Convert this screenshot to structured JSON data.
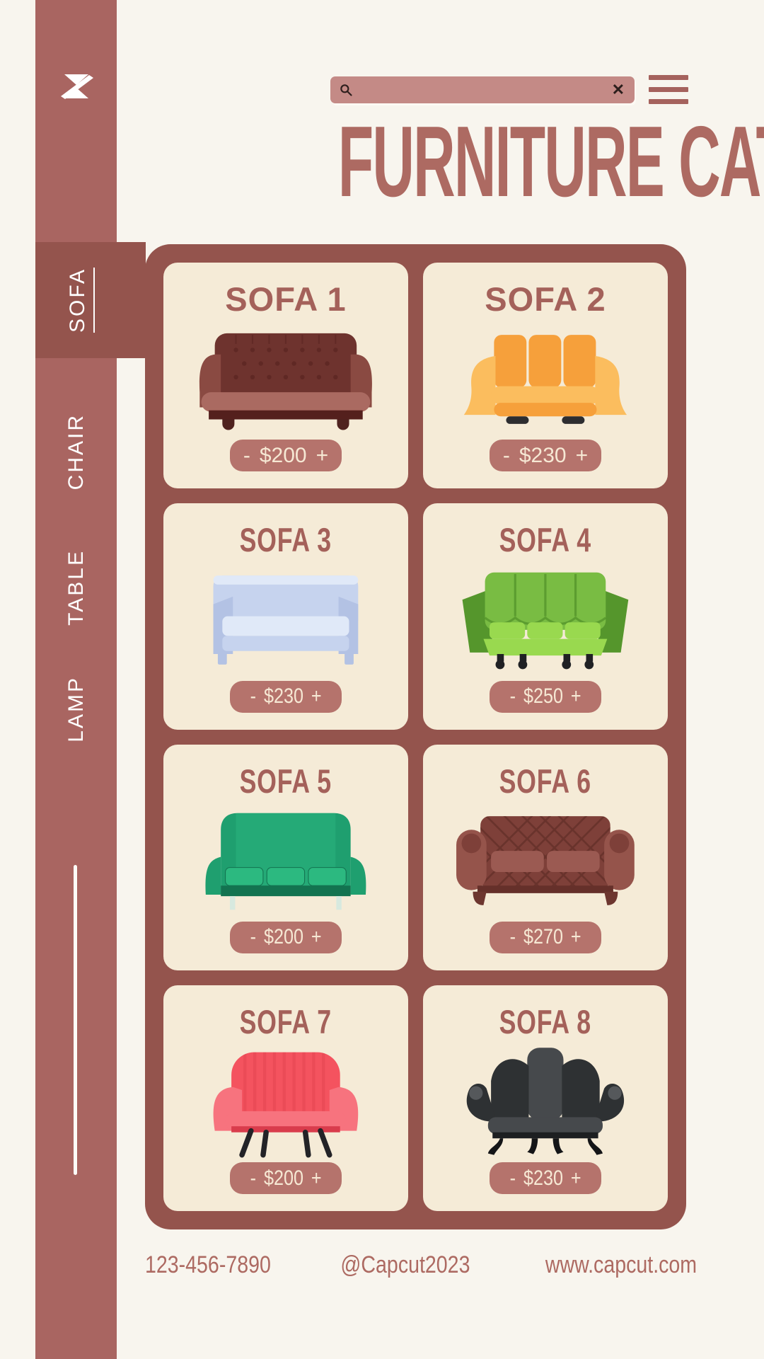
{
  "title": "FURNITURE CATALOG",
  "topbar": {
    "search_placeholder": "",
    "search_value": "",
    "clear_label": "✕"
  },
  "sidebar": {
    "items": [
      {
        "label": "SOFA",
        "active": true
      },
      {
        "label": "CHAIR",
        "active": false
      },
      {
        "label": "TABLE",
        "active": false
      },
      {
        "label": "LAMP",
        "active": false
      }
    ]
  },
  "cards": [
    {
      "title": "SOFA 1",
      "minus": "-",
      "price": "$200",
      "plus": "+",
      "art": "tufted",
      "colors": {
        "main": "#6e332e",
        "light": "#8a4a42",
        "mid": "#aa6a61",
        "dark": "#54201d",
        "feet": "#4f221f"
      }
    },
    {
      "title": "SOFA 2",
      "minus": "-",
      "price": "$230",
      "plus": "+",
      "art": "modern",
      "colors": {
        "main": "#f6a03b",
        "light": "#fbbd5e",
        "mid": "#f9ce7c",
        "dark": "#ee8c26",
        "feet": "#2d2d30"
      }
    },
    {
      "title": "SOFA 3",
      "minus": "-",
      "price": "$230",
      "plus": "+",
      "art": "boxy",
      "colors": {
        "main": "#c6d3ee",
        "light": "#e0e9f8",
        "mid": "#b3c2e4",
        "dark": "#9fb0d8",
        "feet": "#cdd8f1"
      }
    },
    {
      "title": "SOFA 4",
      "minus": "-",
      "price": "$250",
      "plus": "+",
      "art": "lowback",
      "colors": {
        "main": "#79bc43",
        "light": "#99d94f",
        "mid": "#8bcf49",
        "dark": "#55962c",
        "feet": "#202124"
      }
    },
    {
      "title": "SOFA 5",
      "minus": "-",
      "price": "$200",
      "plus": "+",
      "art": "highback",
      "colors": {
        "main": "#1f9f6f",
        "light": "#2cb980",
        "mid": "#36c189",
        "dark": "#137350",
        "feet": "#d7e9df"
      }
    },
    {
      "title": "SOFA 6",
      "minus": "-",
      "price": "$270",
      "plus": "+",
      "art": "chesterfield",
      "colors": {
        "main": "#7e4039",
        "light": "#95544b",
        "mid": "#9b5a52",
        "dark": "#65302a",
        "feet": "#6d362f"
      }
    },
    {
      "title": "SOFA 7",
      "minus": "-",
      "price": "$200",
      "plus": "+",
      "art": "loveseat",
      "colors": {
        "main": "#f4535f",
        "light": "#f7737e",
        "mid": "#f98d96",
        "dark": "#d93c4c",
        "feet": "#232327"
      }
    },
    {
      "title": "SOFA 8",
      "minus": "-",
      "price": "$230",
      "plus": "+",
      "art": "wingback",
      "colors": {
        "main": "#2e3133",
        "light": "#46494c",
        "mid": "#55585b",
        "dark": "#1d1f21",
        "feet": "#141517"
      }
    }
  ],
  "footer": {
    "phone": "123-456-7890",
    "handle": "@Capcut2023",
    "website": "www.capcut.com"
  },
  "theme": {
    "page_bg": "#f8f5ee",
    "sidebar": "#a96561",
    "panel": "#94544d",
    "card_bg": "#f5ebd7",
    "pill": "#b5736c",
    "accent_text": "#ad6a62",
    "search_bar": "#c48a86",
    "hamburger": "#a5625d"
  }
}
